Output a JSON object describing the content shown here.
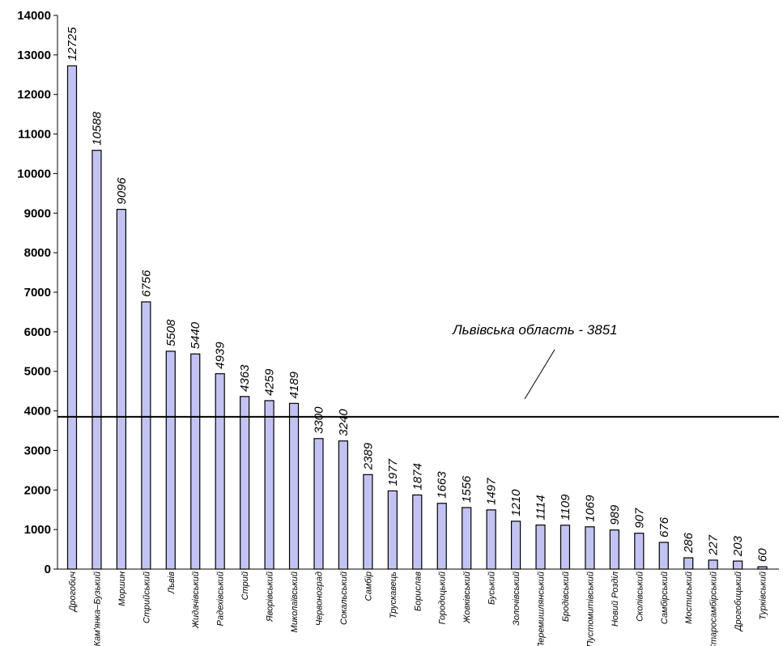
{
  "chart_data": {
    "type": "bar",
    "title": "",
    "xlabel": "",
    "ylabel": "",
    "ylim": [
      0,
      14000
    ],
    "ytick_step": 1000,
    "yticks": [
      "0",
      "1000",
      "2000",
      "3000",
      "4000",
      "5000",
      "6000",
      "7000",
      "8000",
      "9000",
      "10000",
      "11000",
      "12000",
      "13000",
      "14000"
    ],
    "grid": false,
    "legend": "none",
    "bar_color": "#c3c3f3",
    "bar_edge_color": "#000000",
    "categories": [
      "Дрогобич",
      "Кам'янка–Бузький",
      "Моршин",
      "Стрийський",
      "Львів",
      "Жидачівський",
      "Радехівський",
      "Стрий",
      "Яворівський",
      "Миколаївський",
      "Червоноград",
      "Сокальський",
      "Самбір",
      "Трускавець",
      "Борислав",
      "Городоцький",
      "Жовківський",
      "Буський",
      "Золочівський",
      "Перемишлянський",
      "Бродівський",
      "Пустомитівський",
      "Новий Розділ",
      "Сколівський",
      "Самбірський",
      "Мостиський",
      "Старосамбірський",
      "Дрогобицький",
      "Турківський"
    ],
    "values": [
      12725,
      10588,
      9096,
      6756,
      5508,
      5440,
      4939,
      4363,
      4259,
      4189,
      3300,
      3240,
      2389,
      1977,
      1874,
      1663,
      1556,
      1497,
      1210,
      1114,
      1109,
      1069,
      989,
      907,
      676,
      286,
      227,
      203,
      60
    ],
    "value_labels": [
      "12725",
      "10588",
      "9096",
      "6756",
      "5508",
      "5440",
      "4939",
      "4363",
      "4259",
      "4189",
      "3300",
      "3240",
      "2389",
      "1977",
      "1874",
      "1663",
      "1556",
      "1497",
      "1210",
      "1114",
      "1109",
      "1069",
      "989",
      "907",
      "676",
      "286",
      "227",
      "203",
      "60"
    ],
    "reference_line": {
      "value": 3851,
      "label": "Львівська область - 3851"
    }
  }
}
